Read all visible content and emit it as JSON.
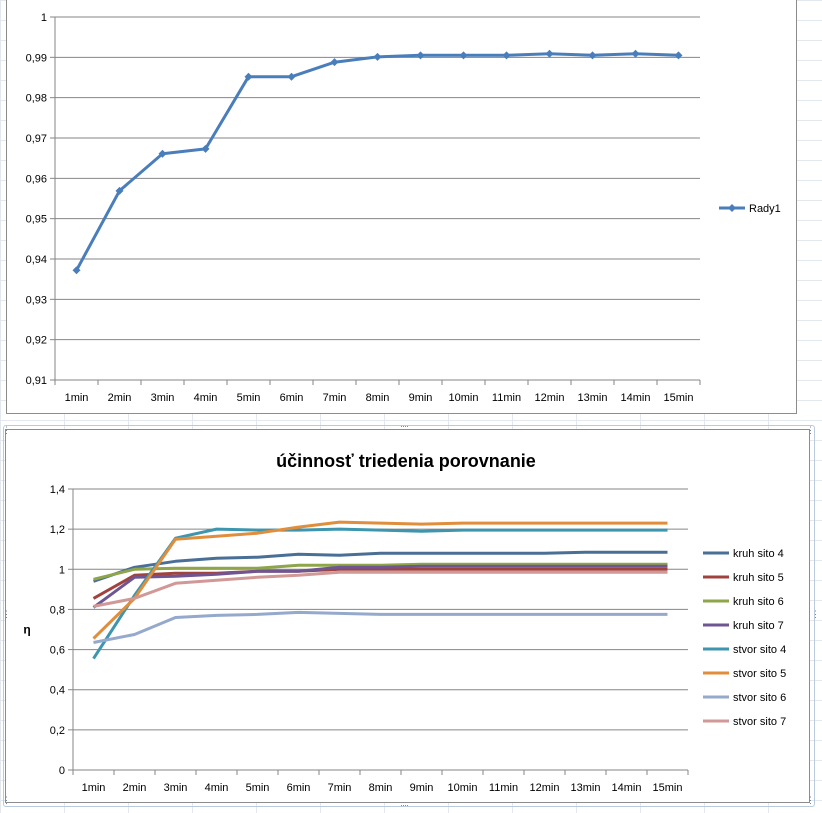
{
  "colors": {
    "axis": "#868686",
    "grid": "#868686",
    "sheet_grid": "#e3e7ee"
  },
  "chart_data": [
    {
      "type": "line",
      "title": "",
      "xlabel": "",
      "ylabel": "",
      "categories": [
        "1min",
        "2min",
        "3min",
        "4min",
        "5min",
        "6min",
        "7min",
        "8min",
        "9min",
        "10min",
        "11min",
        "12min",
        "13min",
        "14min",
        "15min"
      ],
      "ylim": [
        0.91,
        1
      ],
      "yticks": [
        "0,91",
        "0,92",
        "0,93",
        "0,94",
        "0,95",
        "0,96",
        "0,97",
        "0,98",
        "0,99",
        "1"
      ],
      "ytick_values": [
        0.91,
        0.92,
        0.93,
        0.94,
        0.95,
        0.96,
        0.97,
        0.98,
        0.99,
        1
      ],
      "grid": true,
      "legend": "right",
      "series": [
        {
          "name": "Rady1",
          "color": "#4a7ebb",
          "marker": "diamond",
          "values": [
            0.9372,
            0.9569,
            0.9661,
            0.9673,
            0.9852,
            0.9852,
            0.9888,
            0.9901,
            0.9905,
            0.9905,
            0.9905,
            0.9909,
            0.9905,
            0.9909,
            0.9905
          ]
        }
      ]
    },
    {
      "type": "line",
      "title": "účinnosť triedenia porovnanie",
      "xlabel": "",
      "ylabel": "η",
      "categories": [
        "1min",
        "2min",
        "3min",
        "4min",
        "5min",
        "6min",
        "7min",
        "8min",
        "9min",
        "10min",
        "11min",
        "12min",
        "13min",
        "14min",
        "15min"
      ],
      "ylim": [
        0,
        1.4
      ],
      "yticks": [
        "0",
        "0,2",
        "0,4",
        "0,6",
        "0,8",
        "1",
        "1,2",
        "1,4"
      ],
      "ytick_values": [
        0,
        0.2,
        0.4,
        0.6,
        0.8,
        1,
        1.2,
        1.4
      ],
      "grid": true,
      "legend": "right",
      "series": [
        {
          "name": "kruh sito 4",
          "color": "#4a6f96",
          "values": [
            0.94,
            1.01,
            1.04,
            1.055,
            1.06,
            1.075,
            1.07,
            1.08,
            1.08,
            1.08,
            1.08,
            1.08,
            1.085,
            1.085,
            1.085
          ]
        },
        {
          "name": "kruh sito 5",
          "color": "#a0433f",
          "values": [
            0.855,
            0.97,
            0.98,
            0.98,
            0.99,
            0.99,
            1.0,
            1.0,
            1.0,
            1.0,
            1.0,
            1.0,
            1.0,
            1.0,
            1.0
          ]
        },
        {
          "name": "kruh sito 6",
          "color": "#8ea54a",
          "values": [
            0.95,
            1.0,
            1.005,
            1.005,
            1.005,
            1.02,
            1.02,
            1.02,
            1.025,
            1.025,
            1.025,
            1.025,
            1.025,
            1.025,
            1.025
          ]
        },
        {
          "name": "kruh sito 7",
          "color": "#6f5591",
          "values": [
            0.81,
            0.96,
            0.965,
            0.975,
            0.99,
            0.99,
            1.01,
            1.01,
            1.015,
            1.015,
            1.015,
            1.015,
            1.015,
            1.015,
            1.015
          ]
        },
        {
          "name": "stvor sito 4",
          "color": "#3d96ae",
          "values": [
            0.555,
            0.87,
            1.155,
            1.2,
            1.195,
            1.195,
            1.2,
            1.195,
            1.19,
            1.195,
            1.195,
            1.195,
            1.195,
            1.195,
            1.195
          ]
        },
        {
          "name": "stvor sito 5",
          "color": "#e08d3c",
          "values": [
            0.655,
            0.855,
            1.15,
            1.165,
            1.18,
            1.21,
            1.235,
            1.23,
            1.225,
            1.23,
            1.23,
            1.23,
            1.23,
            1.23,
            1.23
          ]
        },
        {
          "name": "stvor sito 6",
          "color": "#94a9cb",
          "values": [
            0.635,
            0.675,
            0.76,
            0.77,
            0.775,
            0.785,
            0.78,
            0.775,
            0.775,
            0.775,
            0.775,
            0.775,
            0.775,
            0.775,
            0.775
          ]
        },
        {
          "name": "stvor sito 7",
          "color": "#d09896",
          "values": [
            0.815,
            0.855,
            0.93,
            0.945,
            0.96,
            0.97,
            0.985,
            0.985,
            0.985,
            0.985,
            0.985,
            0.985,
            0.985,
            0.985,
            0.985
          ]
        }
      ]
    }
  ]
}
